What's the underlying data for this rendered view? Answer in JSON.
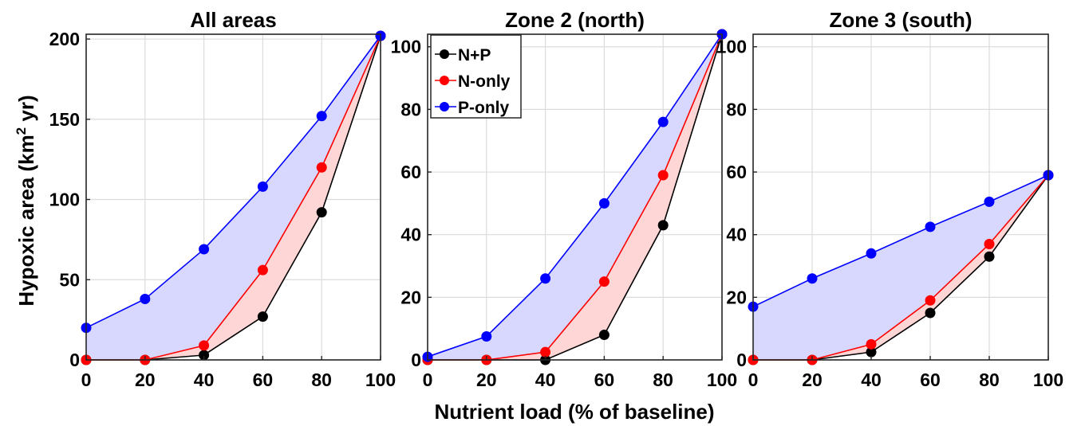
{
  "figure": {
    "xlabel": "Nutrient load (% of baseline)",
    "ylabel_main": "Hypoxic area (km",
    "ylabel_sup": "2",
    "ylabel_end": " yr)"
  },
  "legend": [
    {
      "name": "N+P",
      "color": "#000000"
    },
    {
      "name": "N-only",
      "color": "#ff0000"
    },
    {
      "name": "P-only",
      "color": "#0000ff"
    }
  ],
  "chart_data": [
    {
      "type": "line",
      "title": "All areas",
      "xlabel": "Nutrient load (% of baseline)",
      "ylabel": "Hypoxic area (km2 yr)",
      "x": [
        0,
        20,
        40,
        60,
        80,
        100
      ],
      "xlim": [
        0,
        100
      ],
      "ylim": [
        0,
        203
      ],
      "xticks": [
        0,
        20,
        40,
        60,
        80,
        100
      ],
      "yticks": [
        0,
        50,
        100,
        150,
        200
      ],
      "grid": true,
      "series": [
        {
          "name": "N+P",
          "color": "#000000",
          "values": [
            0,
            0,
            3,
            27,
            92,
            202
          ]
        },
        {
          "name": "N-only",
          "color": "#ff0000",
          "values": [
            0,
            0,
            9,
            56,
            120,
            202
          ]
        },
        {
          "name": "P-only",
          "color": "#0000ff",
          "values": [
            20,
            38,
            69,
            108,
            152,
            202
          ]
        }
      ],
      "fills": [
        {
          "between": [
            "P-only",
            "N-only"
          ],
          "color": "#d8d8ff"
        },
        {
          "between": [
            "N-only",
            "N+P"
          ],
          "color": "#ffd6d6"
        }
      ]
    },
    {
      "type": "line",
      "title": "Zone 2 (north)",
      "x": [
        0,
        20,
        40,
        60,
        80,
        100
      ],
      "xlim": [
        0,
        100
      ],
      "ylim": [
        0,
        104
      ],
      "xticks": [
        0,
        20,
        40,
        60,
        80,
        100
      ],
      "yticks": [
        0,
        20,
        40,
        60,
        80,
        100
      ],
      "grid": true,
      "legend_position": "top-left",
      "series": [
        {
          "name": "N+P",
          "color": "#000000",
          "values": [
            0,
            0,
            0,
            8,
            43,
            104
          ]
        },
        {
          "name": "N-only",
          "color": "#ff0000",
          "values": [
            0,
            0,
            2.5,
            25,
            59,
            104
          ]
        },
        {
          "name": "P-only",
          "color": "#0000ff",
          "values": [
            1,
            7.5,
            26,
            50,
            76,
            104
          ]
        }
      ],
      "fills": [
        {
          "between": [
            "P-only",
            "N-only"
          ],
          "color": "#d8d8ff"
        },
        {
          "between": [
            "N-only",
            "N+P"
          ],
          "color": "#ffd6d6"
        }
      ]
    },
    {
      "type": "line",
      "title": "Zone 3 (south)",
      "x": [
        0,
        20,
        40,
        60,
        80,
        100
      ],
      "xlim": [
        0,
        100
      ],
      "ylim": [
        0,
        104
      ],
      "xticks": [
        0,
        20,
        40,
        60,
        80,
        100
      ],
      "yticks": [
        0,
        20,
        40,
        60,
        80,
        100
      ],
      "grid": true,
      "series": [
        {
          "name": "N+P",
          "color": "#000000",
          "values": [
            0,
            0,
            2.5,
            15,
            33,
            59
          ]
        },
        {
          "name": "N-only",
          "color": "#ff0000",
          "values": [
            0,
            0,
            5,
            19,
            37,
            59
          ]
        },
        {
          "name": "P-only",
          "color": "#0000ff",
          "values": [
            17,
            26,
            34,
            42.5,
            50.5,
            59
          ]
        }
      ],
      "fills": [
        {
          "between": [
            "P-only",
            "N-only"
          ],
          "color": "#d8d8ff"
        },
        {
          "between": [
            "N-only",
            "N+P"
          ],
          "color": "#ffd6d6"
        }
      ]
    }
  ]
}
